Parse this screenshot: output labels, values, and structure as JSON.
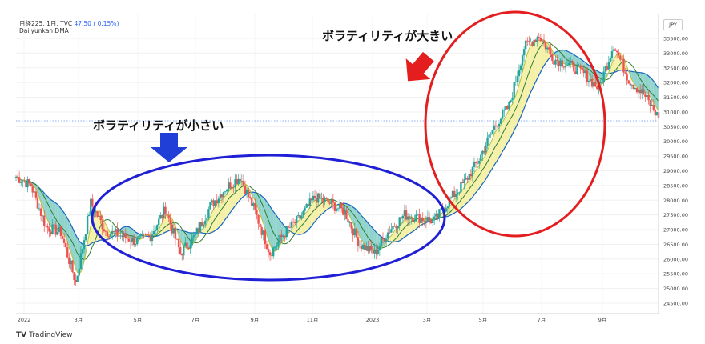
{
  "header": {
    "symbol": "日経225, 1日, TVC",
    "change": "47.50 ( 0.15%)",
    "indicator": "Daijyunkan DMA"
  },
  "currency": "JPY",
  "callouts": {
    "large": "ボラティリティが大きい",
    "small": "ボラティリティが小さい"
  },
  "branding": {
    "mark": "TV",
    "name": "TradingView"
  },
  "colors": {
    "up": "#26a69a",
    "down": "#ef5350",
    "price_line": "#e53935",
    "fast_ma": "#b5c33a",
    "mid_ma": "#2e7d32",
    "slow_ma": "#1565c0",
    "fill_yellow": "#f5f0a8",
    "fill_teal": "#8fd3cc",
    "circle_red": "#e41e1e",
    "circle_blue": "#1f1fd6",
    "arrow_red": "#e41e1e",
    "arrow_blue": "#1f3fd6"
  },
  "chart_data": {
    "type": "line",
    "title": "日経225, 1日, TVC",
    "ylim": [
      24000,
      34000
    ],
    "y_ticks": [
      "24500.00",
      "25000.00",
      "25500.00",
      "26000.00",
      "26500.00",
      "27000.00",
      "27500.00",
      "28000.00",
      "28500.00",
      "29000.00",
      "29500.00",
      "30000.00",
      "30500.00",
      "31000.00",
      "31500.00",
      "32000.00",
      "32500.00",
      "33000.00",
      "33500.00"
    ],
    "x_ticks": [
      "2022",
      "3月",
      "5月",
      "7月",
      "9月",
      "11月",
      "2023",
      "3月",
      "5月",
      "7月",
      "9月"
    ],
    "last_price_level": 30700,
    "series": [
      {
        "name": "日経225",
        "x": [
          "2022-01",
          "2022-01",
          "2022-02",
          "2022-02",
          "2022-03",
          "2022-03",
          "2022-04",
          "2022-04",
          "2022-05",
          "2022-05",
          "2022-06",
          "2022-06",
          "2022-07",
          "2022-07",
          "2022-08",
          "2022-08",
          "2022-09",
          "2022-09",
          "2022-10",
          "2022-10",
          "2022-11",
          "2022-11",
          "2022-12",
          "2022-12",
          "2023-01",
          "2023-01",
          "2023-02",
          "2023-02",
          "2023-03",
          "2023-03",
          "2023-04",
          "2023-04",
          "2023-05",
          "2023-05",
          "2023-06",
          "2023-06",
          "2023-07",
          "2023-07",
          "2023-08",
          "2023-08",
          "2023-09",
          "2023-09",
          "2023-10",
          "2023-10"
        ],
        "values": [
          28800,
          28500,
          27100,
          26900,
          25200,
          27900,
          26950,
          26800,
          26600,
          26800,
          27700,
          26200,
          26800,
          27800,
          28400,
          28800,
          27600,
          26200,
          26900,
          27400,
          28100,
          27900,
          27600,
          26500,
          26200,
          27000,
          27500,
          27400,
          27300,
          28000,
          28600,
          29400,
          30500,
          31200,
          33200,
          33600,
          32800,
          32600,
          32300,
          31800,
          33300,
          32100,
          31600,
          30800
        ]
      }
    ]
  }
}
